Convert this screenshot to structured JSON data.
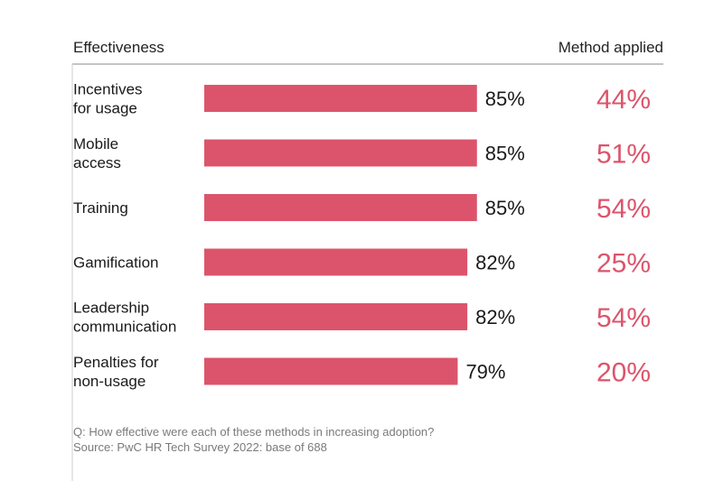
{
  "header": {
    "left_label": "Effectiveness",
    "right_label": "Method applied"
  },
  "footnote": {
    "question": "Q: How effective were each of these methods in increasing adoption?",
    "source": "Source: PwC HR Tech Survey 2022: base of 688"
  },
  "colors": {
    "bar": "#dc546b",
    "method_text": "#dc546b",
    "value_text": "#1a1a1a",
    "axis": "#888888"
  },
  "chart_data": {
    "type": "bar",
    "orientation": "horizontal",
    "categories": [
      [
        "Incentives",
        "for usage"
      ],
      [
        "Mobile",
        "access"
      ],
      [
        "Training"
      ],
      [
        "Gamification"
      ],
      [
        "Leadership",
        "communication"
      ],
      [
        "Penalties for",
        "non-usage"
      ]
    ],
    "series": [
      {
        "name": "Effectiveness",
        "values": [
          85,
          85,
          85,
          82,
          82,
          79
        ],
        "value_labels": [
          "85%",
          "85%",
          "85%",
          "82%",
          "82%",
          "79%"
        ]
      },
      {
        "name": "Method applied",
        "values": [
          44,
          51,
          54,
          25,
          54,
          20
        ],
        "value_labels": [
          "44%",
          "51%",
          "54%",
          "25%",
          "54%",
          "20%"
        ]
      }
    ],
    "xlim": [
      0,
      100
    ],
    "grid": false,
    "legend": "none"
  }
}
